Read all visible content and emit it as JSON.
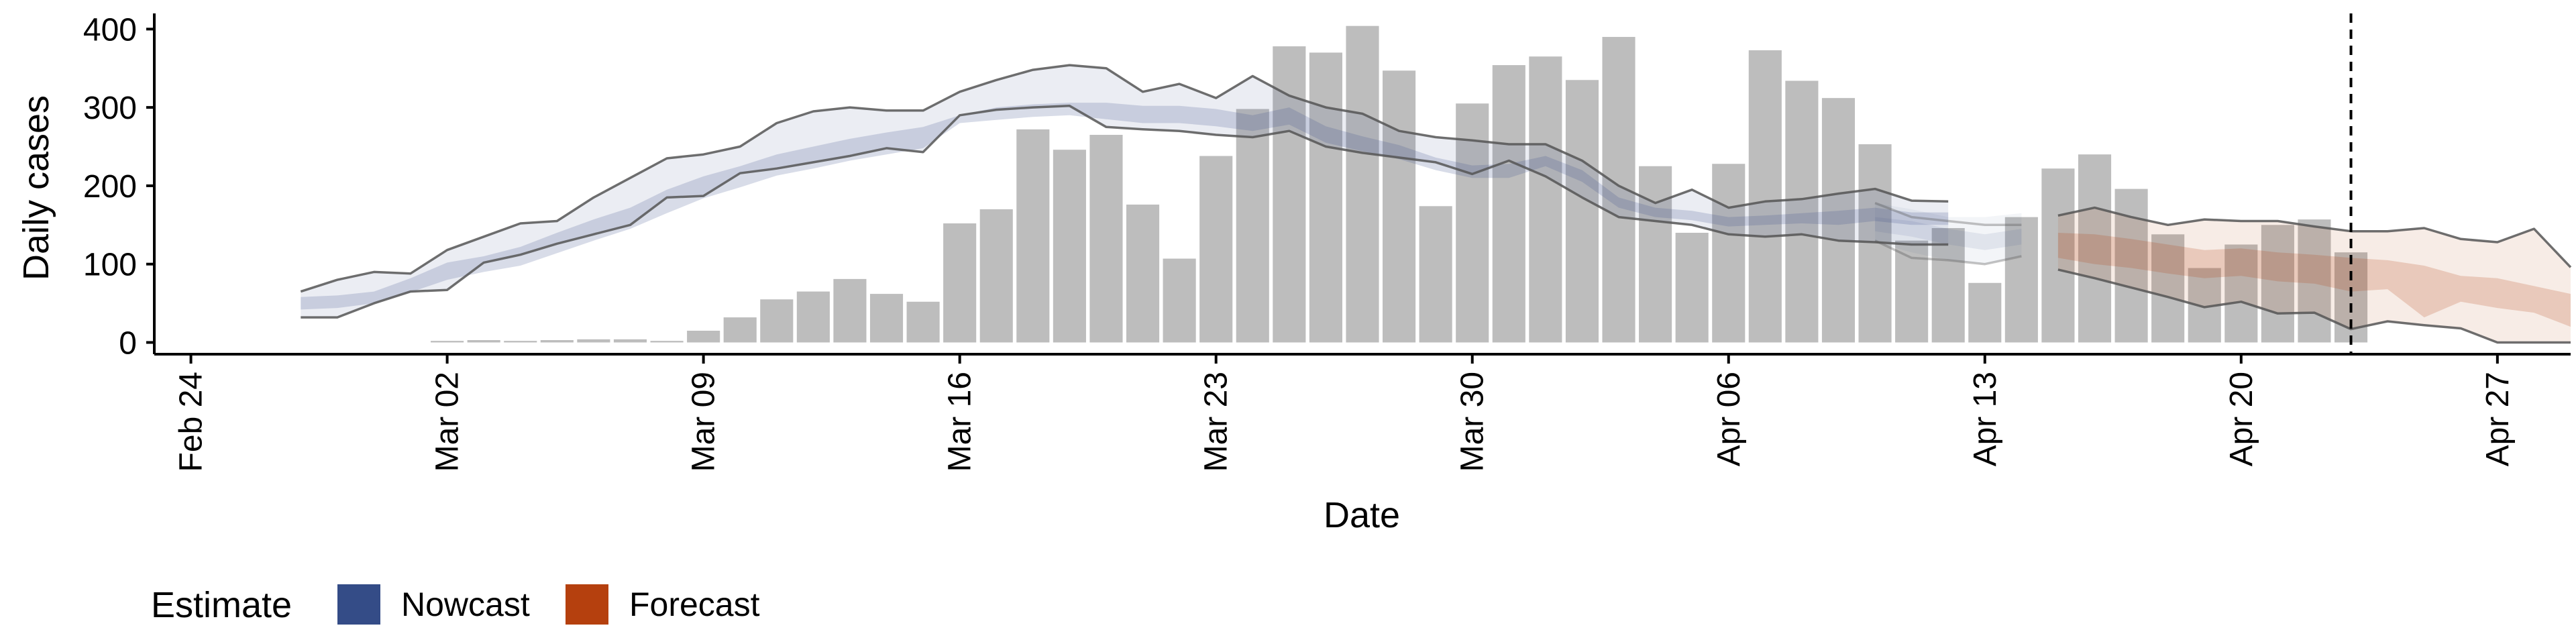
{
  "chart_data": {
    "type": "bar",
    "title": "",
    "xlabel": "Date",
    "ylabel": "Daily cases",
    "x_range": [
      "2020-02-23",
      "2020-04-29"
    ],
    "ylim": [
      -15,
      420
    ],
    "grid": false,
    "x_ticks": [
      {
        "date": "2020-02-24",
        "label": "Feb 24"
      },
      {
        "date": "2020-03-02",
        "label": "Mar 02"
      },
      {
        "date": "2020-03-09",
        "label": "Mar 09"
      },
      {
        "date": "2020-03-16",
        "label": "Mar 16"
      },
      {
        "date": "2020-03-23",
        "label": "Mar 23"
      },
      {
        "date": "2020-03-30",
        "label": "Mar 30"
      },
      {
        "date": "2020-04-06",
        "label": "Apr 06"
      },
      {
        "date": "2020-04-13",
        "label": "Apr 13"
      },
      {
        "date": "2020-04-20",
        "label": "Apr 20"
      },
      {
        "date": "2020-04-27",
        "label": "Apr 27"
      }
    ],
    "y_ticks": [
      0,
      100,
      200,
      300,
      400
    ],
    "bars": {
      "start_date": "2020-03-02",
      "color": "#bdbdbd",
      "values": [
        2,
        3,
        2,
        3,
        4,
        4,
        2,
        15,
        32,
        55,
        65,
        81,
        62,
        52,
        152,
        170,
        272,
        246,
        265,
        176,
        107,
        238,
        298,
        378,
        370,
        404,
        347,
        174,
        305,
        354,
        365,
        335,
        390,
        225,
        140,
        228,
        373,
        334,
        312,
        253,
        130,
        146,
        76,
        160,
        222,
        240,
        196,
        138,
        95,
        125,
        150,
        157,
        115
      ]
    },
    "nowcast": {
      "start_date": "2020-02-27",
      "color": "#3a4f8a",
      "outer_upper": [
        65,
        80,
        90,
        88,
        118,
        135,
        152,
        155,
        185,
        210,
        235,
        240,
        250,
        280,
        295,
        300,
        296,
        296,
        320,
        335,
        348,
        354,
        350,
        320,
        330,
        312,
        340,
        315,
        300,
        292,
        270,
        262,
        258,
        253,
        253,
        232,
        200,
        178,
        195,
        172,
        180,
        183,
        190,
        196,
        181,
        180
      ],
      "outer_lower": [
        32,
        32,
        50,
        65,
        67,
        102,
        112,
        126,
        138,
        150,
        185,
        187,
        216,
        222,
        230,
        238,
        248,
        243,
        290,
        297,
        300,
        302,
        275,
        272,
        270,
        265,
        262,
        270,
        250,
        242,
        236,
        230,
        215,
        232,
        212,
        185,
        160,
        155,
        150,
        138,
        135,
        138,
        130,
        128,
        125,
        125
      ],
      "inner_upper": [
        58,
        60,
        65,
        82,
        102,
        110,
        122,
        140,
        157,
        172,
        195,
        212,
        225,
        240,
        250,
        260,
        268,
        275,
        290,
        300,
        304,
        306,
        306,
        302,
        302,
        298,
        290,
        300,
        276,
        263,
        252,
        236,
        226,
        228,
        238,
        220,
        185,
        172,
        168,
        160,
        162,
        165,
        168,
        172,
        166,
        166
      ],
      "inner_lower": [
        42,
        44,
        50,
        64,
        80,
        90,
        98,
        114,
        130,
        145,
        165,
        184,
        198,
        213,
        222,
        232,
        240,
        248,
        280,
        284,
        288,
        290,
        285,
        280,
        280,
        276,
        270,
        278,
        255,
        244,
        234,
        220,
        210,
        210,
        225,
        205,
        172,
        160,
        156,
        148,
        150,
        152,
        150,
        155,
        150,
        150
      ]
    },
    "nowcast_tail": {
      "start_date": "2020-04-10",
      "light_upper": [
        178,
        170,
        160,
        160,
        165
      ],
      "light_lower": [
        128,
        115,
        105,
        100,
        110
      ],
      "dark_upper": [
        160,
        155,
        145,
        138,
        145
      ],
      "dark_lower": [
        142,
        135,
        125,
        118,
        125
      ],
      "outline_upper": [
        178,
        160,
        155,
        150,
        150
      ],
      "outline_lower": [
        130,
        108,
        105,
        100,
        110
      ]
    },
    "forecast": {
      "start_date": "2020-04-15",
      "color": "#b5400e",
      "outer_upper": [
        162,
        172,
        160,
        150,
        157,
        155,
        155,
        148,
        142,
        142,
        146,
        132,
        128,
        145,
        96
      ],
      "outer_lower": [
        93,
        82,
        70,
        58,
        45,
        52,
        37,
        38,
        17,
        27,
        22,
        18,
        0,
        0,
        0
      ],
      "inner_upper": [
        140,
        138,
        132,
        125,
        118,
        120,
        115,
        112,
        108,
        105,
        98,
        85,
        82,
        72,
        62
      ],
      "inner_lower": [
        108,
        100,
        95,
        88,
        82,
        85,
        78,
        75,
        65,
        68,
        32,
        52,
        44,
        38,
        20
      ]
    },
    "vline_date": "2020-04-23",
    "legend": {
      "title": "Estimate",
      "position": "bottom-left",
      "entries": [
        {
          "label": "Nowcast",
          "color": "#344c87"
        },
        {
          "label": "Forecast",
          "color": "#b5400e"
        }
      ]
    }
  }
}
